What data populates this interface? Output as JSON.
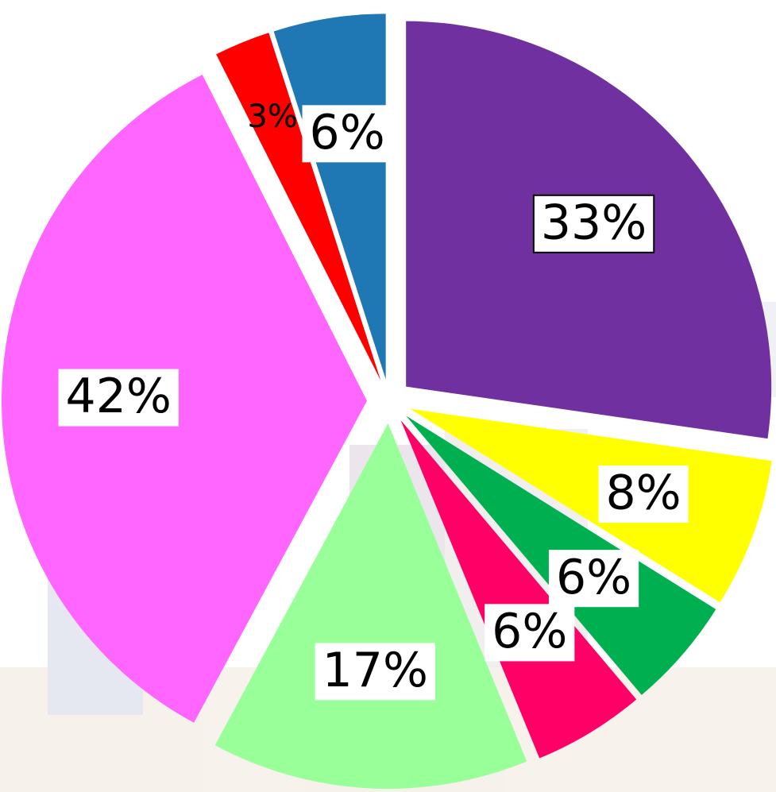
{
  "chart_data": {
    "type": "pie",
    "values": [
      33,
      8,
      6,
      6,
      17,
      42,
      3,
      6
    ],
    "value_labels": [
      "33%",
      "8%",
      "6%",
      "6%",
      "17%",
      "42%",
      "3%",
      "6%"
    ],
    "colors": [
      "#7030a0",
      "#ffff00",
      "#00b050",
      "#ff0066",
      "#99ff99",
      "#ff66ff",
      "#ff0000",
      "#1f78b4"
    ],
    "label_boxes": [
      true,
      true,
      true,
      true,
      true,
      true,
      false,
      true
    ],
    "label_borders": [
      true,
      false,
      false,
      false,
      false,
      false,
      false,
      false
    ]
  }
}
